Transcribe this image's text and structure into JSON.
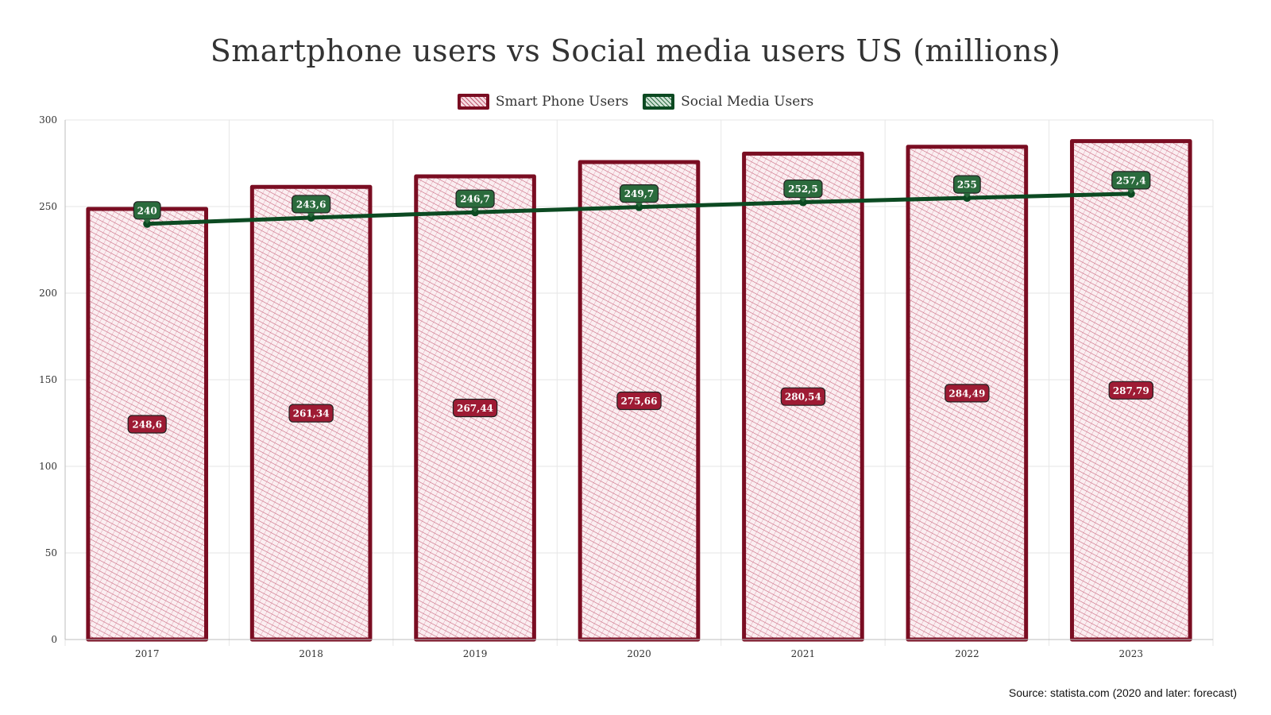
{
  "chart_data": {
    "type": "bar",
    "title": "Smartphone users vs Social media users US (millions)",
    "categories": [
      "2017",
      "2018",
      "2019",
      "2020",
      "2021",
      "2022",
      "2023"
    ],
    "series": [
      {
        "name": "Smart Phone Users",
        "type": "bar",
        "values": [
          248.6,
          261.34,
          267.44,
          275.66,
          280.54,
          284.49,
          287.79
        ],
        "labels": [
          "248,6",
          "261,34",
          "267,44",
          "275,66",
          "280,54",
          "284,49",
          "287,79"
        ],
        "border_color": "#7a0d22",
        "fill_color": "#c45b74",
        "label_bg": "#9e1b34"
      },
      {
        "name": "Social Media Users",
        "type": "line",
        "values": [
          240,
          243.6,
          246.7,
          249.7,
          252.5,
          255,
          257.4
        ],
        "labels": [
          "240",
          "243,6",
          "246,7",
          "249,7",
          "252,5",
          "255",
          "257,4"
        ],
        "line_color": "#0c4a22",
        "label_bg": "#2b6b3d"
      }
    ],
    "ylim": [
      0,
      300
    ],
    "yticks": [
      0,
      50,
      100,
      150,
      200,
      250,
      300
    ],
    "grid": true,
    "legend_position": "top-center",
    "xlabel": "",
    "ylabel": ""
  },
  "source_note": "Source: statista.com (2020 and later: forecast)"
}
